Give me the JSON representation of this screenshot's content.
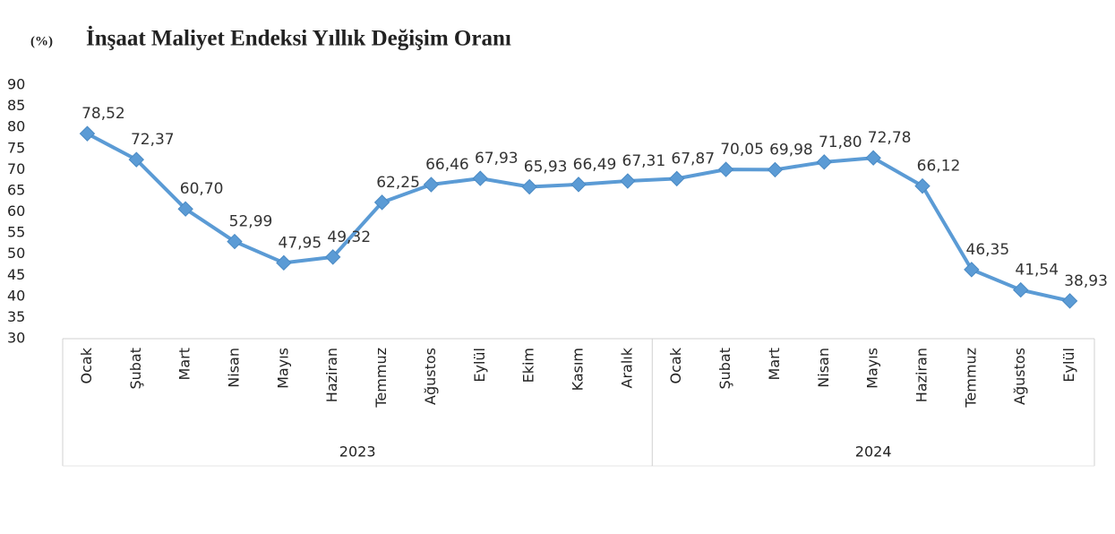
{
  "chart_data": {
    "type": "line",
    "unit_label": "(%)",
    "title": "İnşaat Maliyet Endeksi Yıllık Değişim Oranı",
    "categories": [
      "Ocak",
      "Şubat",
      "Mart",
      "Nisan",
      "Mayıs",
      "Haziran",
      "Temmuz",
      "Ağustos",
      "Eylül",
      "Ekim",
      "Kasım",
      "Aralık",
      "Ocak",
      "Şubat",
      "Mart",
      "Nisan",
      "Mayıs",
      "Haziran",
      "Temmuz",
      "Ağustos",
      "Eylül"
    ],
    "groups": [
      "2023",
      "2024"
    ],
    "values": [
      78.52,
      72.37,
      60.7,
      52.99,
      47.95,
      49.32,
      62.25,
      66.46,
      67.93,
      65.93,
      66.49,
      67.31,
      67.87,
      70.05,
      69.98,
      71.8,
      72.78,
      66.12,
      46.35,
      41.54,
      38.93
    ],
    "value_labels": [
      "78,52",
      "72,37",
      "60,70",
      "52,99",
      "47,95",
      "49,32",
      "62,25",
      "66,46",
      "67,93",
      "65,93",
      "66,49",
      "67,31",
      "67,87",
      "70,05",
      "69,98",
      "71,80",
      "72,78",
      "66,12",
      "46,35",
      "41,54",
      "38,93"
    ],
    "color": "#5b9bd5",
    "ylim": [
      30,
      90
    ],
    "yticks": [
      30,
      35,
      40,
      45,
      50,
      55,
      60,
      65,
      70,
      75,
      80,
      85,
      90
    ],
    "grid": false
  }
}
